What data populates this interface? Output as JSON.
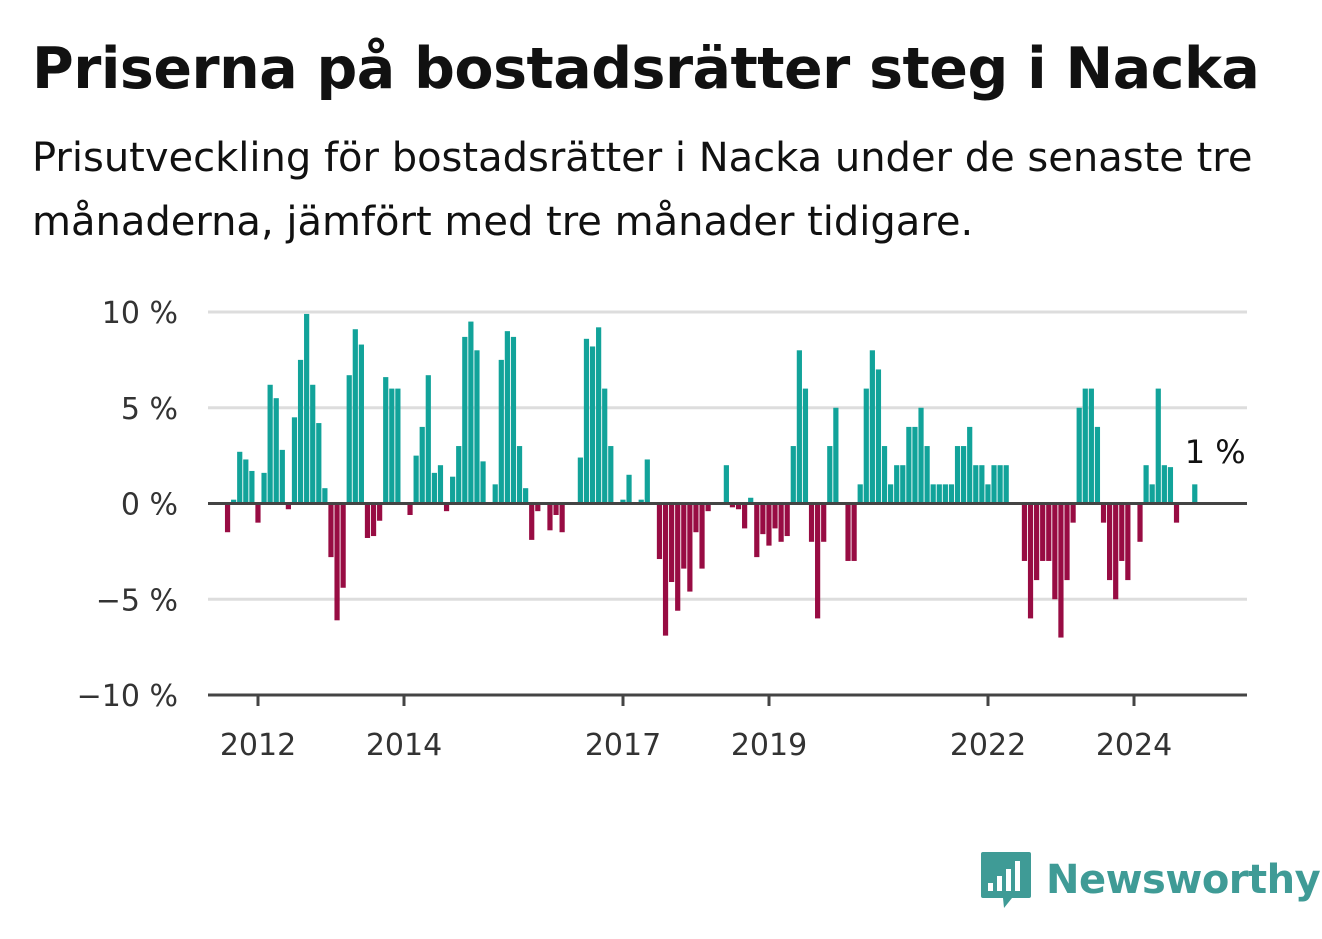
{
  "header": {
    "title": "Priserna på bostadsrätter steg i Nacka",
    "subtitle": "Prisutveckling för bostadsrätter i Nacka under de senaste tre månaderna, jämfört med tre månader tidigare."
  },
  "brand": {
    "name": "Newsworthy",
    "icon": "bar-chart-speech-bubble-icon",
    "color": "#3f9b96"
  },
  "chart_data": {
    "type": "bar",
    "title": "",
    "xlabel": "",
    "ylabel": "",
    "ylim": [
      -10,
      10
    ],
    "y_ticks": [
      10,
      5,
      0,
      -5,
      -10
    ],
    "y_tick_labels": [
      "10 %",
      "5 %",
      "0 %",
      "−5 %",
      "−10 %"
    ],
    "x_ticks": [
      2012,
      2014,
      2017,
      2019,
      2022,
      2024
    ],
    "x_tick_labels": [
      "2012",
      "2014",
      "2017",
      "2019",
      "2022",
      "2024"
    ],
    "x_start": 2011.583,
    "x_step": 0.08333,
    "grid": true,
    "legend": "none",
    "colors": {
      "positive": "#12a39a",
      "negative": "#980c43",
      "grid": "#dddddd",
      "axis": "#444444"
    },
    "annotation": {
      "text": "1 %",
      "index": 159
    },
    "values": [
      -1.5,
      0.2,
      2.7,
      2.3,
      1.7,
      -1,
      1.6,
      6.2,
      5.5,
      2.8,
      -0.3,
      4.5,
      7.5,
      9.9,
      6.2,
      4.2,
      0.8,
      -2.8,
      -6.1,
      -4.4,
      6.7,
      9.1,
      8.3,
      -1.8,
      -1.7,
      -0.9,
      6.6,
      6.0,
      6.0,
      0,
      -0.6,
      2.5,
      4.0,
      6.7,
      1.6,
      2.0,
      -0.4,
      1.4,
      3.0,
      8.7,
      9.5,
      8.0,
      2.2,
      0,
      1.0,
      7.5,
      9.0,
      8.7,
      3.0,
      0.8,
      -1.9,
      -0.4,
      0,
      -1.4,
      -0.6,
      -1.5,
      0,
      0,
      2.4,
      8.6,
      8.2,
      9.2,
      6.0,
      3.0,
      0,
      0.2,
      1.5,
      0,
      0.2,
      2.3,
      0,
      -2.9,
      -6.9,
      -4.1,
      -5.6,
      -3.4,
      -4.6,
      -1.5,
      -3.4,
      -0.4,
      0,
      0,
      2.0,
      -0.2,
      -0.3,
      -1.3,
      0.3,
      -2.8,
      -1.6,
      -2.2,
      -1.3,
      -2.0,
      -1.7,
      3.0,
      8.0,
      6.0,
      -2.0,
      -6.0,
      -2.0,
      3.0,
      5.0,
      0,
      -3.0,
      -3.0,
      1.0,
      6.0,
      8.0,
      7.0,
      3.0,
      1.0,
      2.0,
      2.0,
      4.0,
      4.0,
      5.0,
      3.0,
      1.0,
      1.0,
      1.0,
      1.0,
      3.0,
      3.0,
      4.0,
      2.0,
      2.0,
      1.0,
      2.0,
      2.0,
      2.0,
      0,
      0,
      -3.0,
      -6.0,
      -4.0,
      -3.0,
      -3.0,
      -5.0,
      -7.0,
      -4.0,
      -1.0,
      5.0,
      6.0,
      6.0,
      4.0,
      -1.0,
      -4.0,
      -5.0,
      -3.0,
      -4.0,
      0,
      -2.0,
      2.0,
      1.0,
      6.0,
      2.0,
      1.9,
      -1.0,
      0,
      0,
      1.0
    ]
  }
}
